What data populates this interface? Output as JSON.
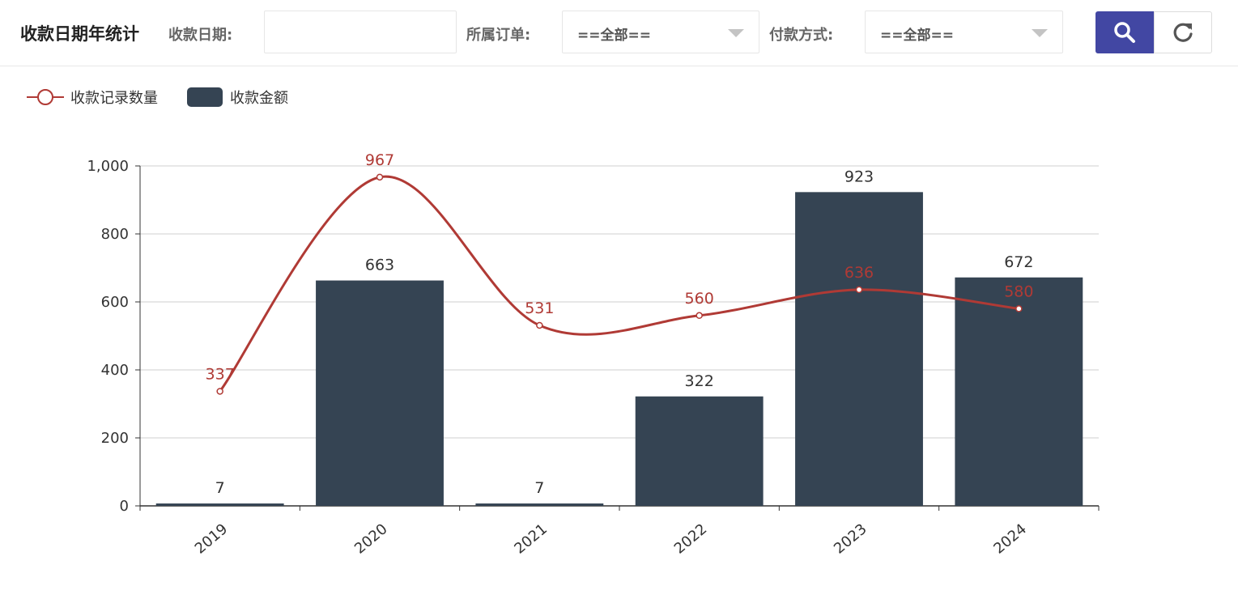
{
  "header": {
    "title": "收款日期年统计",
    "filters": {
      "date": {
        "label": "收款日期:",
        "value": "",
        "placeholder": ""
      },
      "order": {
        "label": "所属订单:",
        "value": "==全部=="
      },
      "payment": {
        "label": "付款方式:",
        "value": "==全部=="
      }
    },
    "buttons": {
      "search_icon": "search-icon",
      "reset_icon": "refresh-icon"
    },
    "accent_color": "#4247a3"
  },
  "chart_data": {
    "type": "bar",
    "categories": [
      "2019",
      "2020",
      "2021",
      "2022",
      "2023",
      "2024"
    ],
    "ylim": [
      0,
      1000
    ],
    "yticks": [
      0,
      200,
      400,
      600,
      800,
      1000
    ],
    "ytick_labels": [
      "0",
      "200",
      "400",
      "600",
      "800",
      "1,000"
    ],
    "grid": true,
    "legend_position": "top-left",
    "series": [
      {
        "name": "收款记录数量",
        "type": "line",
        "smooth": true,
        "color": "#b03a35",
        "values": [
          337,
          967,
          531,
          560,
          636,
          580
        ]
      },
      {
        "name": "收款金额",
        "type": "bar",
        "color": "#354453",
        "values": [
          7,
          663,
          7,
          322,
          923,
          672
        ]
      }
    ]
  }
}
